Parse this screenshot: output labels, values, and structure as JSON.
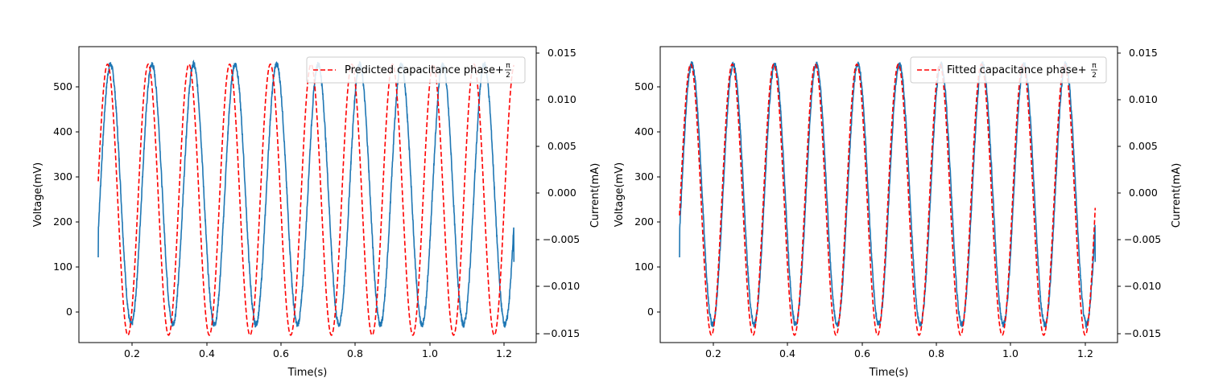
{
  "chart_data": [
    {
      "type": "line",
      "xlabel": "Time(s)",
      "ylabel_left": "Voltage(mV)",
      "ylabel_right": "Current(mA)",
      "xlim": [
        0.06,
        1.29
      ],
      "ylim_left": [
        -68,
        585
      ],
      "ylim_right": [
        -0.0164,
        0.0157
      ],
      "x_ticks": [
        "0.2",
        "0.4",
        "0.6",
        "0.8",
        "1.0",
        "1.2"
      ],
      "y_ticks_left": [
        "0",
        "100",
        "200",
        "300",
        "400",
        "500"
      ],
      "y_ticks_right": [
        "−0.015",
        "−0.010",
        "−0.005",
        "0.000",
        "0.005",
        "0.010",
        "0.015"
      ],
      "grid": false,
      "legend": {
        "position": "top-right",
        "entries": [
          {
            "label": "Predicted capacitance phase+",
            "math_num": "π",
            "math_den": "2"
          }
        ]
      },
      "voltage": {
        "color": "#1f77b4",
        "t_start": 0.112,
        "t_end": 1.23,
        "period": 0.1117,
        "peak_time": 0.145,
        "offset_mV": 259,
        "amplitude_mV": 287,
        "initial_mV": 120
      },
      "current": {
        "color": "#ff0000",
        "linestyle": "dashed",
        "t_start": 0.112,
        "t_end": 1.23,
        "period": 0.1095,
        "peak_time": 0.137,
        "offset_mA": -0.0009,
        "amplitude_mA": 0.0147
      }
    },
    {
      "type": "line",
      "xlabel": "Time(s)",
      "ylabel_left": "Voltage(mV)",
      "ylabel_right": "Current(mA)",
      "xlim": [
        0.06,
        1.29
      ],
      "ylim_left": [
        -68,
        585
      ],
      "ylim_right": [
        -0.0164,
        0.0157
      ],
      "x_ticks": [
        "0.2",
        "0.4",
        "0.6",
        "0.8",
        "1.0",
        "1.2"
      ],
      "y_ticks_left": [
        "0",
        "100",
        "200",
        "300",
        "400",
        "500"
      ],
      "y_ticks_right": [
        "−0.015",
        "−0.010",
        "−0.005",
        "0.000",
        "0.005",
        "0.010",
        "0.015"
      ],
      "grid": false,
      "legend": {
        "position": "top-right",
        "entries": [
          {
            "label": "Fitted capacitance phase+",
            "math_num": "π",
            "math_den": "2"
          }
        ]
      },
      "voltage": {
        "color": "#1f77b4",
        "t_start": 0.112,
        "t_end": 1.23,
        "period": 0.1117,
        "peak_time": 0.145,
        "offset_mV": 259,
        "amplitude_mV": 287,
        "initial_mV": 120
      },
      "current": {
        "color": "#ff0000",
        "linestyle": "dashed",
        "t_start": 0.112,
        "t_end": 1.23,
        "period": 0.1117,
        "peak_time": 0.142,
        "offset_mA": -0.0009,
        "amplitude_mA": 0.0147
      }
    }
  ]
}
